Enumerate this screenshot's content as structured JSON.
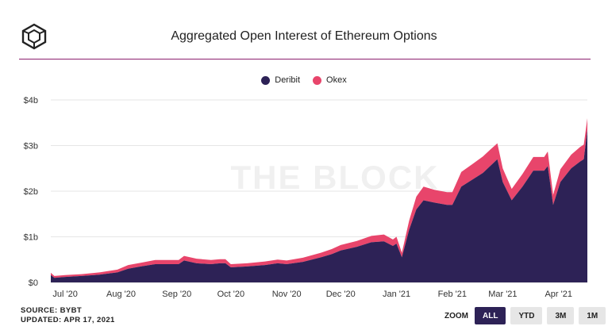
{
  "header": {
    "title": "Aggregated Open Interest of Ethereum Options",
    "logo_icon": "the-block-cube-icon"
  },
  "watermark": "THE BLOCK",
  "legend": [
    {
      "label": "Deribit",
      "color": "#2d2256"
    },
    {
      "label": "Okex",
      "color": "#e8456b"
    }
  ],
  "footer": {
    "source": "SOURCE: BYBT",
    "updated": "UPDATED: APR 17, 2021"
  },
  "zoom": {
    "label": "ZOOM",
    "options": [
      "ALL",
      "YTD",
      "3M",
      "1M"
    ],
    "selected": "ALL"
  },
  "colors": {
    "accent_line": "#8b1e6e",
    "deribit": "#2d2256",
    "okex": "#e8456b"
  },
  "chart_data": {
    "type": "area",
    "stacked": true,
    "title": "Aggregated Open Interest of Ethereum Options",
    "x_tick_labels": [
      "Jul '20",
      "Aug '20",
      "Sep '20",
      "Oct '20",
      "Nov '20",
      "Dec '20",
      "Jan '21",
      "Feb '21",
      "Mar '21",
      "Apr '21"
    ],
    "y_tick_labels": [
      "$0",
      "$1b",
      "$2b",
      "$3b",
      "$4b"
    ],
    "ylim": [
      0,
      4
    ],
    "x_range": [
      "2020-06-23",
      "2021-04-17"
    ],
    "grid": true,
    "legend_position": "top-center",
    "x": [
      "2020-06-23",
      "2020-06-25",
      "2020-07-01",
      "2020-07-10",
      "2020-07-20",
      "2020-07-30",
      "2020-08-05",
      "2020-08-12",
      "2020-08-20",
      "2020-08-28",
      "2020-09-02",
      "2020-09-05",
      "2020-09-12",
      "2020-09-20",
      "2020-09-25",
      "2020-09-28",
      "2020-10-01",
      "2020-10-10",
      "2020-10-20",
      "2020-10-27",
      "2020-11-01",
      "2020-11-10",
      "2020-11-20",
      "2020-11-26",
      "2020-12-01",
      "2020-12-10",
      "2020-12-18",
      "2020-12-25",
      "2020-12-30",
      "2021-01-01",
      "2021-01-04",
      "2021-01-08",
      "2021-01-12",
      "2021-01-16",
      "2021-01-22",
      "2021-01-29",
      "2021-02-01",
      "2021-02-06",
      "2021-02-12",
      "2021-02-18",
      "2021-02-22",
      "2021-02-26",
      "2021-03-01",
      "2021-03-06",
      "2021-03-12",
      "2021-03-18",
      "2021-03-24",
      "2021-03-26",
      "2021-03-29",
      "2021-04-02",
      "2021-04-08",
      "2021-04-13",
      "2021-04-15",
      "2021-04-17"
    ],
    "series": [
      {
        "name": "Deribit",
        "values": [
          0.16,
          0.1,
          0.12,
          0.14,
          0.17,
          0.22,
          0.3,
          0.35,
          0.4,
          0.4,
          0.4,
          0.48,
          0.42,
          0.4,
          0.42,
          0.42,
          0.33,
          0.35,
          0.38,
          0.42,
          0.4,
          0.45,
          0.55,
          0.62,
          0.7,
          0.78,
          0.88,
          0.9,
          0.8,
          0.85,
          0.55,
          1.15,
          1.6,
          1.8,
          1.75,
          1.7,
          1.7,
          2.1,
          2.25,
          2.4,
          2.55,
          2.7,
          2.2,
          1.8,
          2.1,
          2.45,
          2.45,
          2.55,
          1.7,
          2.2,
          2.5,
          2.65,
          2.7,
          3.35
        ]
      },
      {
        "name": "Okex",
        "values": [
          0.05,
          0.04,
          0.04,
          0.04,
          0.05,
          0.06,
          0.08,
          0.08,
          0.09,
          0.09,
          0.09,
          0.1,
          0.1,
          0.09,
          0.09,
          0.09,
          0.07,
          0.07,
          0.08,
          0.08,
          0.08,
          0.09,
          0.1,
          0.11,
          0.12,
          0.13,
          0.14,
          0.15,
          0.14,
          0.15,
          0.1,
          0.2,
          0.28,
          0.3,
          0.28,
          0.28,
          0.28,
          0.32,
          0.34,
          0.36,
          0.36,
          0.35,
          0.3,
          0.25,
          0.28,
          0.3,
          0.3,
          0.32,
          0.22,
          0.28,
          0.3,
          0.32,
          0.32,
          0.25
        ]
      }
    ]
  }
}
